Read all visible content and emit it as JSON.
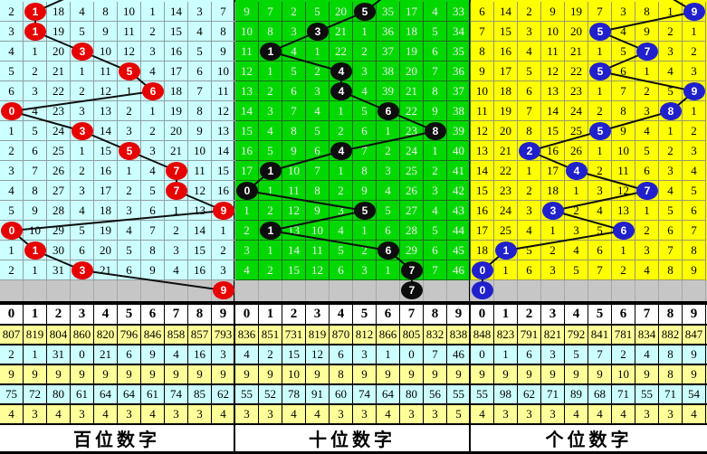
{
  "app": "lottery-3d-trend-chart",
  "gray_row_color": "#C6C6C6",
  "line_color": "#101010",
  "stats_row_colors": [
    "#FFFF99",
    "#CCFFFF",
    "#FFFF99",
    "#CCFFFF",
    "#FFFF99"
  ],
  "panels": [
    {
      "key": "hundreds",
      "title": "百位数字",
      "colors": {
        "bg": "#CCFFFF",
        "text": "#000000",
        "grid": "#8f9fa3",
        "circle": "#E60000",
        "circle_text": "#FFFFFF"
      },
      "columns": [
        "0",
        "1",
        "2",
        "3",
        "4",
        "5",
        "6",
        "7",
        "8",
        "9"
      ],
      "rows": [
        [
          "2",
          "1",
          "18",
          "4",
          "8",
          "10",
          "1",
          "14",
          "3",
          "7"
        ],
        [
          "3",
          "1",
          "19",
          "5",
          "9",
          "11",
          "2",
          "15",
          "4",
          "8"
        ],
        [
          "4",
          "1",
          "20",
          "3",
          "10",
          "12",
          "3",
          "16",
          "5",
          "9"
        ],
        [
          "5",
          "2",
          "21",
          "1",
          "11",
          "5",
          "4",
          "17",
          "6",
          "10"
        ],
        [
          "6",
          "3",
          "22",
          "2",
          "12",
          "1",
          "6",
          "18",
          "7",
          "11"
        ],
        [
          "0",
          "4",
          "23",
          "3",
          "13",
          "2",
          "1",
          "19",
          "8",
          "12"
        ],
        [
          "1",
          "5",
          "24",
          "3",
          "14",
          "3",
          "2",
          "20",
          "9",
          "13"
        ],
        [
          "2",
          "6",
          "25",
          "1",
          "15",
          "5",
          "3",
          "21",
          "10",
          "14"
        ],
        [
          "3",
          "7",
          "26",
          "2",
          "16",
          "1",
          "4",
          "7",
          "11",
          "15"
        ],
        [
          "4",
          "8",
          "27",
          "3",
          "17",
          "2",
          "5",
          "7",
          "12",
          "16"
        ],
        [
          "5",
          "9",
          "28",
          "4",
          "18",
          "3",
          "6",
          "1",
          "13",
          "9"
        ],
        [
          "0",
          "10",
          "29",
          "5",
          "19",
          "4",
          "7",
          "2",
          "14",
          "1"
        ],
        [
          "1",
          "1",
          "30",
          "6",
          "20",
          "5",
          "8",
          "3",
          "15",
          "2"
        ],
        [
          "2",
          "1",
          "31",
          "3",
          "21",
          "6",
          "9",
          "4",
          "16",
          "3"
        ]
      ],
      "circled_cols": [
        1,
        1,
        3,
        5,
        6,
        0,
        3,
        5,
        7,
        7,
        9,
        0,
        1,
        3
      ],
      "pending_col": 9,
      "entry_point": [
        95,
        -12
      ],
      "stats": [
        [
          "807",
          "819",
          "804",
          "860",
          "820",
          "796",
          "846",
          "858",
          "857",
          "793"
        ],
        [
          "2",
          "1",
          "31",
          "0",
          "21",
          "6",
          "9",
          "4",
          "16",
          "3"
        ],
        [
          "9",
          "9",
          "9",
          "9",
          "9",
          "9",
          "9",
          "9",
          "9",
          "9"
        ],
        [
          "75",
          "72",
          "80",
          "61",
          "64",
          "64",
          "61",
          "74",
          "85",
          "62"
        ],
        [
          "4",
          "3",
          "4",
          "3",
          "4",
          "3",
          "4",
          "3",
          "3",
          "4"
        ]
      ]
    },
    {
      "key": "tens",
      "title": "十位数字",
      "colors": {
        "bg": "#00D800",
        "text": "#EFEFEF",
        "grid": "#1d6b1d",
        "circle": "#0D0D0D",
        "circle_text": "#FFFFFF"
      },
      "columns": [
        "0",
        "1",
        "2",
        "3",
        "4",
        "5",
        "6",
        "7",
        "8",
        "9"
      ],
      "rows": [
        [
          "9",
          "7",
          "2",
          "5",
          "20",
          "5",
          "35",
          "17",
          "4",
          "33"
        ],
        [
          "10",
          "8",
          "3",
          "3",
          "21",
          "1",
          "36",
          "18",
          "5",
          "34"
        ],
        [
          "11",
          "1",
          "4",
          "1",
          "22",
          "2",
          "37",
          "19",
          "6",
          "35"
        ],
        [
          "12",
          "1",
          "5",
          "2",
          "4",
          "3",
          "38",
          "20",
          "7",
          "36"
        ],
        [
          "13",
          "2",
          "6",
          "3",
          "4",
          "4",
          "39",
          "21",
          "8",
          "37"
        ],
        [
          "14",
          "3",
          "7",
          "4",
          "1",
          "5",
          "6",
          "22",
          "9",
          "38"
        ],
        [
          "15",
          "4",
          "8",
          "5",
          "2",
          "6",
          "1",
          "23",
          "8",
          "39"
        ],
        [
          "16",
          "5",
          "9",
          "6",
          "4",
          "7",
          "2",
          "24",
          "1",
          "40"
        ],
        [
          "17",
          "1",
          "10",
          "7",
          "1",
          "8",
          "3",
          "25",
          "2",
          "41"
        ],
        [
          "0",
          "1",
          "11",
          "8",
          "2",
          "9",
          "4",
          "26",
          "3",
          "42"
        ],
        [
          "1",
          "2",
          "12",
          "9",
          "3",
          "5",
          "5",
          "27",
          "4",
          "43"
        ],
        [
          "2",
          "1",
          "13",
          "10",
          "4",
          "1",
          "6",
          "28",
          "5",
          "44"
        ],
        [
          "3",
          "1",
          "14",
          "11",
          "5",
          "2",
          "6",
          "29",
          "6",
          "45"
        ],
        [
          "4",
          "2",
          "15",
          "12",
          "6",
          "3",
          "1",
          "7",
          "7",
          "46"
        ]
      ],
      "circled_cols": [
        5,
        3,
        1,
        4,
        4,
        6,
        8,
        4,
        1,
        0,
        5,
        1,
        6,
        7
      ],
      "pending_col": 7,
      "entry_point": [
        175,
        -12
      ],
      "stats": [
        [
          "836",
          "851",
          "731",
          "819",
          "870",
          "812",
          "866",
          "805",
          "832",
          "838"
        ],
        [
          "4",
          "2",
          "15",
          "12",
          "6",
          "3",
          "1",
          "0",
          "7",
          "46"
        ],
        [
          "9",
          "9",
          "10",
          "9",
          "8",
          "9",
          "9",
          "9",
          "9",
          "9"
        ],
        [
          "55",
          "52",
          "78",
          "91",
          "60",
          "74",
          "64",
          "80",
          "56",
          "55"
        ],
        [
          "3",
          "3",
          "4",
          "4",
          "3",
          "3",
          "4",
          "3",
          "3",
          "5"
        ]
      ]
    },
    {
      "key": "units",
      "title": "个位数字",
      "colors": {
        "bg": "#FFFF00",
        "text": "#000000",
        "grid": "#9a9a6a",
        "circle": "#2020CC",
        "circle_text": "#FFFFFF"
      },
      "columns": [
        "0",
        "1",
        "2",
        "3",
        "4",
        "5",
        "6",
        "7",
        "8",
        "9"
      ],
      "rows": [
        [
          "6",
          "14",
          "2",
          "9",
          "19",
          "7",
          "3",
          "8",
          "1",
          "9"
        ],
        [
          "7",
          "15",
          "3",
          "10",
          "20",
          "5",
          "4",
          "9",
          "2",
          "1"
        ],
        [
          "8",
          "16",
          "4",
          "11",
          "21",
          "1",
          "5",
          "7",
          "3",
          "2"
        ],
        [
          "9",
          "17",
          "5",
          "12",
          "22",
          "5",
          "6",
          "1",
          "4",
          "3"
        ],
        [
          "10",
          "18",
          "6",
          "13",
          "23",
          "1",
          "7",
          "2",
          "5",
          "9"
        ],
        [
          "11",
          "19",
          "7",
          "14",
          "24",
          "2",
          "8",
          "3",
          "8",
          "1"
        ],
        [
          "12",
          "20",
          "8",
          "15",
          "25",
          "5",
          "9",
          "4",
          "1",
          "2"
        ],
        [
          "13",
          "21",
          "2",
          "16",
          "26",
          "1",
          "10",
          "5",
          "2",
          "3"
        ],
        [
          "14",
          "22",
          "1",
          "17",
          "4",
          "2",
          "11",
          "6",
          "3",
          "4"
        ],
        [
          "15",
          "23",
          "2",
          "18",
          "1",
          "3",
          "12",
          "7",
          "4",
          "5"
        ],
        [
          "16",
          "24",
          "3",
          "3",
          "2",
          "4",
          "13",
          "1",
          "5",
          "6"
        ],
        [
          "17",
          "25",
          "4",
          "1",
          "3",
          "5",
          "6",
          "2",
          "6",
          "7"
        ],
        [
          "18",
          "1",
          "5",
          "2",
          "4",
          "6",
          "1",
          "3",
          "7",
          "8"
        ],
        [
          "0",
          "1",
          "6",
          "3",
          "5",
          "7",
          "2",
          "4",
          "8",
          "9"
        ]
      ],
      "circled_cols": [
        9,
        5,
        7,
        5,
        9,
        8,
        5,
        2,
        4,
        7,
        3,
        6,
        1,
        0
      ],
      "pending_col": 0,
      "entry_point": [
        205,
        -12
      ],
      "stats": [
        [
          "848",
          "823",
          "791",
          "821",
          "792",
          "841",
          "781",
          "834",
          "882",
          "847"
        ],
        [
          "0",
          "1",
          "6",
          "3",
          "5",
          "7",
          "2",
          "4",
          "8",
          "9"
        ],
        [
          "9",
          "9",
          "9",
          "9",
          "9",
          "9",
          "10",
          "9",
          "8",
          "9"
        ],
        [
          "55",
          "98",
          "62",
          "71",
          "89",
          "68",
          "71",
          "55",
          "71",
          "54"
        ],
        [
          "4",
          "3",
          "3",
          "3",
          "4",
          "4",
          "4",
          "3",
          "3",
          "4"
        ]
      ]
    }
  ],
  "chart_data": {
    "type": "table",
    "panels": [
      "百位数字",
      "十位数字",
      "个位数字"
    ],
    "columns": [
      "0",
      "1",
      "2",
      "3",
      "4",
      "5",
      "6",
      "7",
      "8",
      "9"
    ],
    "series": [
      {
        "name": "百位数字",
        "values": [
          1,
          1,
          3,
          5,
          6,
          0,
          3,
          5,
          7,
          7,
          9,
          0,
          1,
          3,
          9
        ]
      },
      {
        "name": "十位数字",
        "values": [
          5,
          3,
          1,
          4,
          4,
          6,
          8,
          4,
          1,
          0,
          5,
          1,
          6,
          7,
          7
        ]
      },
      {
        "name": "个位数字",
        "values": [
          9,
          5,
          7,
          5,
          9,
          8,
          5,
          2,
          4,
          7,
          3,
          6,
          1,
          0,
          0
        ]
      }
    ]
  }
}
